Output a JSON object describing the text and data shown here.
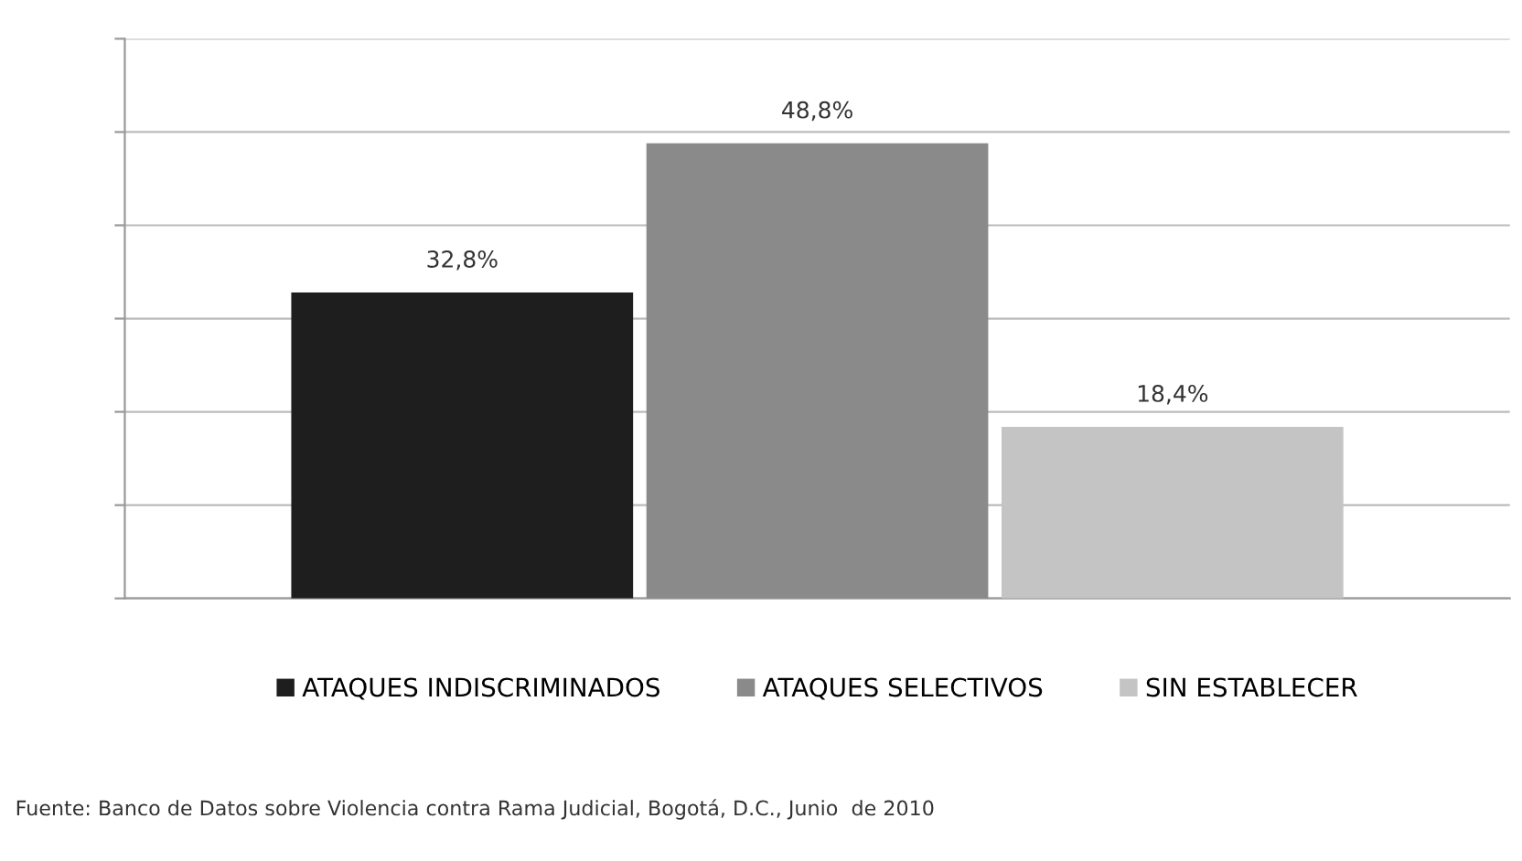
{
  "chart_data": {
    "type": "bar",
    "categories": [
      null
    ],
    "series": [
      {
        "name": "ATAQUES INDISCRIMINADOS",
        "color": "#1e1e1e",
        "values": [
          32.8
        ],
        "value_labels": [
          "32,8%"
        ]
      },
      {
        "name": "ATAQUES SELECTIVOS",
        "color": "#8a8a8a",
        "values": [
          48.8
        ],
        "value_labels": [
          "48,8%"
        ]
      },
      {
        "name": "SIN ESTABLECER",
        "color": "#c4c4c4",
        "values": [
          18.4
        ],
        "value_labels": [
          "18,4%"
        ]
      }
    ],
    "ylim": [
      0,
      60
    ],
    "yticks": [
      {
        "value": 0,
        "label": null
      },
      {
        "value": 10,
        "label": null
      },
      {
        "value": 20,
        "label": null
      },
      {
        "value": 30,
        "label": null
      },
      {
        "value": 40,
        "label": null
      },
      {
        "value": 50,
        "label": null
      },
      {
        "value": 60,
        "label": null
      }
    ],
    "grid": "y",
    "legend": "bottom",
    "annotations": [
      "Fuente: Banco de Datos sobre Violencia contra Rama Judicial, Bogotá, D.C., Junio  de 2010"
    ]
  }
}
